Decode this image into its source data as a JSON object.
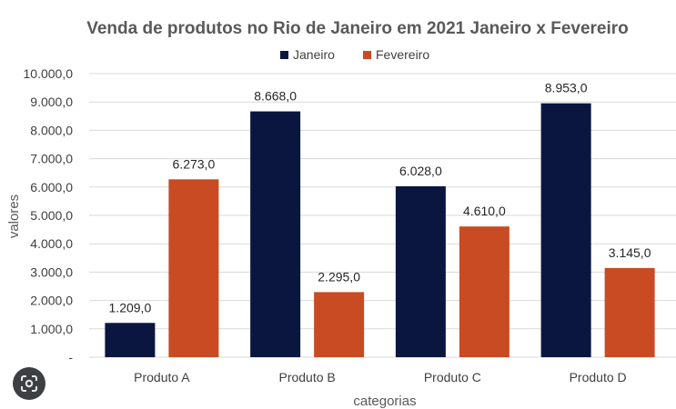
{
  "chart_data": {
    "type": "bar",
    "title": "Venda de produtos no Rio de Janeiro em 2021 Janeiro x Fevereiro",
    "xlabel": "categorias",
    "ylabel": "valores",
    "categories": [
      "Produto A",
      "Produto B",
      "Produto C",
      "Produto D"
    ],
    "series": [
      {
        "name": "Janeiro",
        "color": "#0b1640",
        "values": [
          1209,
          8668,
          6028,
          8953
        ],
        "labels": [
          "1.209,0",
          "8.668,0",
          "6.028,0",
          "8.953,0"
        ]
      },
      {
        "name": "Fevereiro",
        "color": "#c84b24",
        "values": [
          6273,
          2295,
          4610,
          3145
        ],
        "labels": [
          "6.273,0",
          "2.295,0",
          "4.610,0",
          "3.145,0"
        ]
      }
    ],
    "ylim": [
      0,
      10000
    ],
    "yticks": [
      0,
      1000,
      2000,
      3000,
      4000,
      5000,
      6000,
      7000,
      8000,
      9000,
      10000
    ],
    "ytick_labels": [
      "-",
      "1.000,0",
      "2.000,0",
      "3.000,0",
      "4.000,0",
      "5.000,0",
      "6.000,0",
      "7.000,0",
      "8.000,0",
      "9.000,0",
      "10.000,0"
    ],
    "grid": true,
    "legend_position": "top"
  },
  "overlay": {
    "icon": "lens-icon"
  }
}
